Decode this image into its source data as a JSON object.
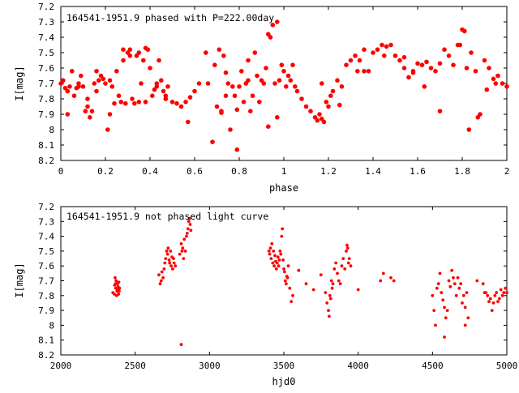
{
  "chart_data": [
    {
      "type": "scatter",
      "title": "164541-1951.9 phased with P=222.00day",
      "xlabel": "phase",
      "ylabel": "I[mag]",
      "xlim": [
        0,
        2
      ],
      "ylim": [
        8.2,
        7.2
      ],
      "y_inverted": true,
      "x_ticks": [
        "0",
        "0.2",
        "0.4",
        "0.6",
        "0.8",
        "1",
        "1.2",
        "1.4",
        "1.6",
        "1.8",
        "2"
      ],
      "y_ticks": [
        "7.2",
        "7.3",
        "7.4",
        "7.5",
        "7.6",
        "7.7",
        "7.8",
        "7.9",
        "8",
        "8.1",
        "8.2"
      ],
      "marker_color": "#ff0000",
      "series": [
        {
          "x": [
            0.0,
            0.01,
            0.02,
            0.03,
            0.04,
            0.05,
            0.06,
            0.07,
            0.08,
            0.09,
            0.1,
            0.11,
            0.12,
            0.13,
            0.14,
            0.15,
            0.16,
            0.17,
            0.18,
            0.19,
            0.2,
            0.21,
            0.22,
            0.23,
            0.24,
            0.25,
            0.26,
            0.27,
            0.28,
            0.29,
            0.3,
            0.31,
            0.32,
            0.33,
            0.34,
            0.35,
            0.36,
            0.37,
            0.38,
            0.39,
            0.4,
            0.41,
            0.42,
            0.43,
            0.44,
            0.45,
            0.46,
            0.47,
            0.48,
            0.5,
            0.52,
            0.54,
            0.56,
            0.58,
            0.6,
            0.62,
            0.65,
            0.68,
            0.69,
            0.7,
            0.71,
            0.72,
            0.73,
            0.74,
            0.75,
            0.76,
            0.77,
            0.78,
            0.79,
            0.8,
            0.81,
            0.82,
            0.83,
            0.84,
            0.85,
            0.86,
            0.87,
            0.88,
            0.89,
            0.9,
            0.91,
            0.92,
            0.93,
            0.94,
            0.95,
            0.96,
            0.97,
            0.98,
            0.99,
            1.0,
            1.01,
            1.02,
            1.03,
            1.04,
            1.06,
            1.08,
            1.1,
            1.12,
            1.14,
            1.15,
            1.16,
            1.17,
            1.18,
            1.19,
            1.2,
            1.21,
            1.22,
            1.24,
            1.26,
            1.28,
            1.3,
            1.32,
            1.34,
            1.36,
            1.38,
            1.4,
            1.42,
            1.44,
            1.46,
            1.48,
            1.5,
            1.52,
            1.54,
            1.56,
            1.58,
            1.6,
            1.62,
            1.64,
            1.66,
            1.68,
            1.7,
            1.72,
            1.74,
            1.76,
            1.78,
            1.8,
            1.81,
            1.82,
            1.83,
            1.84,
            1.86,
            1.88,
            1.9,
            1.92,
            1.94,
            1.96,
            1.98,
            2.0,
            0.03,
            0.12,
            0.22,
            0.28,
            0.35,
            0.43,
            0.57,
            0.74,
            0.84,
            0.97,
            1.17,
            1.36,
            1.54,
            1.7,
            1.87,
            0.08,
            0.31,
            0.47,
            0.72,
            0.93,
            1.25,
            1.45,
            1.63,
            1.79,
            1.95,
            0.16,
            0.38,
            0.66,
            0.79,
            1.05,
            1.33,
            1.58,
            1.91
          ],
          "y": [
            7.7,
            7.68,
            7.73,
            7.75,
            7.72,
            7.62,
            7.78,
            7.73,
            7.7,
            7.65,
            7.72,
            7.88,
            7.8,
            7.92,
            7.88,
            7.7,
            7.75,
            7.68,
            7.65,
            7.67,
            7.7,
            8.0,
            7.9,
            7.72,
            7.83,
            7.62,
            7.78,
            7.82,
            7.55,
            7.83,
            7.5,
            7.48,
            7.8,
            7.83,
            7.52,
            7.5,
            7.7,
            7.55,
            7.82,
            7.48,
            7.6,
            7.78,
            7.74,
            7.72,
            7.55,
            7.68,
            7.75,
            7.8,
            7.72,
            7.82,
            7.83,
            7.85,
            7.82,
            7.79,
            7.75,
            7.7,
            7.5,
            8.08,
            7.58,
            7.85,
            7.48,
            7.89,
            7.52,
            7.63,
            7.7,
            8.0,
            7.72,
            7.78,
            7.87,
            7.72,
            7.62,
            7.82,
            7.7,
            7.68,
            7.88,
            7.78,
            7.5,
            7.65,
            7.82,
            7.68,
            7.7,
            7.6,
            7.38,
            7.4,
            7.32,
            7.7,
            7.3,
            7.68,
            7.58,
            7.62,
            7.72,
            7.65,
            7.68,
            7.58,
            7.75,
            7.8,
            7.85,
            7.88,
            7.92,
            7.94,
            7.9,
            7.93,
            7.95,
            7.82,
            7.85,
            7.78,
            7.75,
            7.68,
            7.72,
            7.58,
            7.55,
            7.52,
            7.55,
            7.48,
            7.62,
            7.5,
            7.48,
            7.45,
            7.46,
            7.45,
            7.52,
            7.55,
            7.6,
            7.66,
            7.62,
            7.57,
            7.58,
            7.56,
            7.6,
            7.62,
            7.57,
            7.48,
            7.52,
            7.58,
            7.45,
            7.35,
            7.36,
            7.6,
            8.0,
            7.5,
            7.62,
            7.9,
            7.55,
            7.6,
            7.67,
            7.65,
            7.7,
            7.72,
            7.9,
            7.85,
            7.68,
            7.48,
            7.82,
            7.7,
            7.95,
            7.78,
            7.55,
            7.92,
            7.7,
            7.62,
            7.53,
            7.88,
            7.92,
            7.72,
            7.52,
            7.78,
            7.88,
            7.98,
            7.84,
            7.52,
            7.72,
            7.45,
            7.7,
            7.62,
            7.47,
            7.7,
            8.13,
            7.72,
            7.62,
            7.63,
            7.74
          ],
          "marker": "filled-circle"
        }
      ]
    },
    {
      "type": "scatter",
      "title": "164541-1951.9 not phased light curve",
      "xlabel": "hjd0",
      "ylabel": "I[mag]",
      "xlim": [
        2000,
        5000
      ],
      "ylim": [
        8.2,
        7.2
      ],
      "y_inverted": true,
      "x_ticks": [
        "2000",
        "2500",
        "3000",
        "3500",
        "4000",
        "4500",
        "5000"
      ],
      "y_ticks": [
        "7.2",
        "7.3",
        "7.4",
        "7.5",
        "7.6",
        "7.7",
        "7.8",
        "7.9",
        "8",
        "8.1",
        "8.2"
      ],
      "marker_color": "#ff0000",
      "series": [
        {
          "x": [
            2350,
            2360,
            2362,
            2365,
            2368,
            2370,
            2372,
            2375,
            2378,
            2380,
            2382,
            2385,
            2388,
            2390,
            2392,
            2395,
            2660,
            2668,
            2675,
            2680,
            2688,
            2695,
            2700,
            2705,
            2712,
            2718,
            2722,
            2728,
            2732,
            2738,
            2742,
            2748,
            2752,
            2758,
            2762,
            2770,
            2800,
            2810,
            2815,
            2820,
            2825,
            2830,
            2838,
            2845,
            2850,
            2855,
            2860,
            2865,
            2870,
            2875,
            3400,
            3405,
            3410,
            3415,
            3420,
            3425,
            3430,
            3435,
            3440,
            3445,
            3450,
            3455,
            3460,
            3465,
            3470,
            3475,
            3480,
            3485,
            3490,
            3495,
            3500,
            3505,
            3510,
            3515,
            3520,
            3525,
            3530,
            3540,
            3550,
            3600,
            3650,
            3700,
            3750,
            3780,
            3790,
            3800,
            3805,
            3810,
            3815,
            3820,
            3825,
            3830,
            3840,
            3850,
            3860,
            3870,
            3880,
            3890,
            3900,
            3910,
            3920,
            3925,
            3930,
            3935,
            3940,
            3950,
            4150,
            4170,
            4220,
            4240,
            4500,
            4510,
            4520,
            4530,
            4540,
            4550,
            4560,
            4570,
            4580,
            4590,
            4600,
            4610,
            4620,
            4630,
            4640,
            4650,
            4660,
            4670,
            4680,
            4690,
            4700,
            4710,
            4720,
            4730,
            4740,
            4800,
            4840,
            4850,
            4860,
            4870,
            4880,
            4890,
            4900,
            4910,
            4920,
            4930,
            4940,
            4950,
            4960,
            4970,
            4980,
            4990,
            5000,
            2810,
            4580,
            4720,
            3560,
            4000
          ],
          "y": [
            7.78,
            7.79,
            7.73,
            7.68,
            7.72,
            7.75,
            7.7,
            7.8,
            7.77,
            7.72,
            7.76,
            7.74,
            7.79,
            7.71,
            7.77,
            7.75,
            7.66,
            7.72,
            7.7,
            7.64,
            7.68,
            7.62,
            7.58,
            7.55,
            7.5,
            7.52,
            7.48,
            7.56,
            7.58,
            7.5,
            7.6,
            7.54,
            7.62,
            7.55,
            7.58,
            7.6,
            7.52,
            7.45,
            7.5,
            7.48,
            7.55,
            7.42,
            7.5,
            7.4,
            7.38,
            7.35,
            7.3,
            7.28,
            7.32,
            7.36,
            7.5,
            7.52,
            7.48,
            7.55,
            7.45,
            7.58,
            7.5,
            7.6,
            7.53,
            7.57,
            7.62,
            7.58,
            7.54,
            7.6,
            7.56,
            7.5,
            7.52,
            7.4,
            7.35,
            7.56,
            7.62,
            7.64,
            7.7,
            7.72,
            7.67,
            7.68,
            7.6,
            7.75,
            7.84,
            7.63,
            7.72,
            7.76,
            7.66,
            7.78,
            7.85,
            7.9,
            7.94,
            7.8,
            7.82,
            7.7,
            7.75,
            7.72,
            7.62,
            7.58,
            7.65,
            7.7,
            7.72,
            7.6,
            7.55,
            7.62,
            7.5,
            7.46,
            7.48,
            7.58,
            7.55,
            7.6,
            7.7,
            7.65,
            7.68,
            7.7,
            7.8,
            7.9,
            8.0,
            7.75,
            7.72,
            7.65,
            7.78,
            7.83,
            7.88,
            7.95,
            7.9,
            7.7,
            7.74,
            7.63,
            7.68,
            7.72,
            7.8,
            7.68,
            7.75,
            7.72,
            7.85,
            7.8,
            7.88,
            7.78,
            7.95,
            7.7,
            7.72,
            7.78,
            7.78,
            7.8,
            7.84,
            7.82,
            7.9,
            7.85,
            7.8,
            7.78,
            7.84,
            7.82,
            7.76,
            7.8,
            7.78,
            7.75,
            7.78,
            8.13,
            8.08,
            8.0,
            7.8,
            7.76
          ]
        }
      ]
    }
  ]
}
